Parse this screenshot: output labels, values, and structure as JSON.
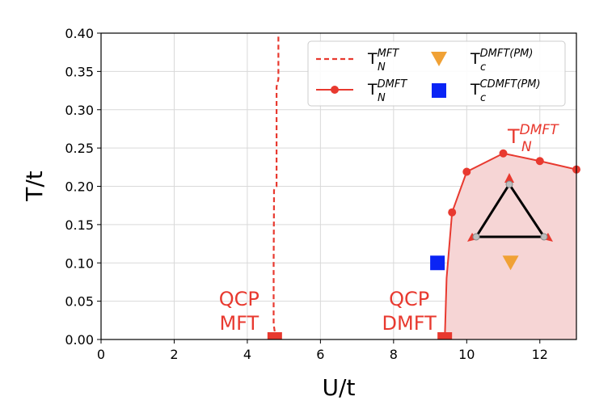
{
  "chart_data": {
    "type": "line",
    "xlabel": "U/t",
    "ylabel": "T/t",
    "xlim": [
      0,
      13
    ],
    "ylim": [
      0,
      0.4
    ],
    "x_ticks": [
      "0",
      "2",
      "4",
      "6",
      "8",
      "10",
      "12"
    ],
    "y_ticks": [
      "0.00",
      "0.05",
      "0.10",
      "0.15",
      "0.20",
      "0.25",
      "0.30",
      "0.35",
      "0.40"
    ],
    "grid": true,
    "legend_position": "top-right",
    "series": [
      {
        "name_main": "T",
        "name_sup": "MFT",
        "name_sub": "N",
        "style": "dashed",
        "color": "#e8392f",
        "x": [
          4.75,
          4.75,
          4.72,
          4.72,
          4.73,
          4.73,
          4.8,
          4.8,
          4.85,
          4.85,
          4.85
        ],
        "y": [
          0.0,
          0.01,
          0.02,
          0.1,
          0.18,
          0.195,
          0.2,
          0.33,
          0.34,
          0.36,
          0.4
        ]
      },
      {
        "name_main": "T",
        "name_sup": "DMFT",
        "name_sub": "N",
        "style": "solid-marker",
        "color": "#e8392f",
        "x": [
          9.4,
          9.45,
          9.6,
          10.0,
          11.0,
          12.0,
          13.0
        ],
        "y": [
          0.0,
          0.08,
          0.166,
          0.219,
          0.243,
          0.233,
          0.222
        ]
      },
      {
        "name_main": "T",
        "name_sup": "DMFT(PM)",
        "name_sub": "c",
        "style": "triangle-down",
        "color": "#f0a135",
        "x": [
          11.2
        ],
        "y": [
          0.1
        ]
      },
      {
        "name_main": "T",
        "name_sup": "CDMFT(PM)",
        "name_sub": "c",
        "style": "square",
        "color": "#0a24f5",
        "x": [
          9.2
        ],
        "y": [
          0.1
        ]
      }
    ],
    "qcp_points": [
      {
        "label_top": "QCP",
        "label_bottom": "MFT",
        "x": 4.75,
        "y": 0.0,
        "color": "#e8392f"
      },
      {
        "label_top": "QCP",
        "label_bottom": "DMFT",
        "x": 9.4,
        "y": 0.0,
        "color": "#e8392f"
      }
    ],
    "region_label": {
      "main": "T",
      "sup": "DMFT",
      "sub": "N",
      "color": "#e8392f"
    },
    "shaded_color": "#f6d5d5"
  }
}
